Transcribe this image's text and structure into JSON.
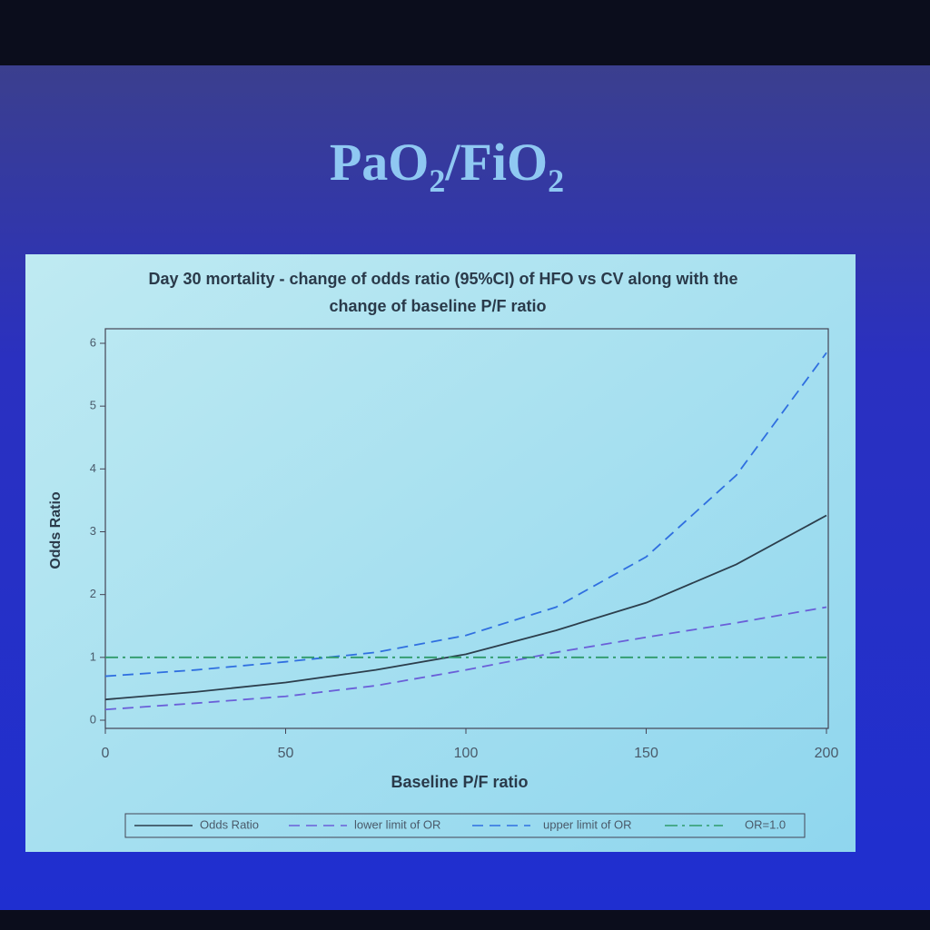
{
  "slide_title_parts": [
    "PaO",
    "2",
    "/FiO",
    "2"
  ],
  "chart_data": {
    "type": "line",
    "title": [
      "Day 30 mortality - change of odds ratio (95%CI) of HFO vs CV along with the",
      "change of baseline P/F ratio"
    ],
    "x_label": "Baseline P/F ratio",
    "y_label": "Odds Ratio",
    "x": [
      0,
      25,
      50,
      75,
      100,
      125,
      150,
      175,
      200
    ],
    "xlim": [
      0,
      200
    ],
    "xticks": [
      0,
      50,
      100,
      150,
      200
    ],
    "ylim": [
      0,
      6
    ],
    "yticks": [
      0,
      1,
      2,
      3,
      4,
      5,
      6
    ],
    "series": [
      {
        "name": "Odds Ratio",
        "color": "#2c3e4c",
        "dash": "solid",
        "values": [
          0.33,
          0.45,
          0.6,
          0.8,
          1.05,
          1.43,
          1.87,
          2.48,
          3.26
        ]
      },
      {
        "name": "lower limit of OR",
        "color": "#6a5fd8",
        "dash": "dashed",
        "values": [
          0.17,
          0.27,
          0.38,
          0.55,
          0.8,
          1.08,
          1.32,
          1.55,
          1.8
        ]
      },
      {
        "name": "upper limit of OR",
        "color": "#2f6fe0",
        "dash": "dashed",
        "values": [
          0.7,
          0.8,
          0.93,
          1.08,
          1.35,
          1.8,
          2.6,
          3.9,
          5.85
        ]
      },
      {
        "name": "OR=1.0",
        "color": "#2f9a6a",
        "dash": "dashdot",
        "values": [
          1,
          1,
          1,
          1,
          1,
          1,
          1,
          1,
          1
        ]
      }
    ]
  }
}
